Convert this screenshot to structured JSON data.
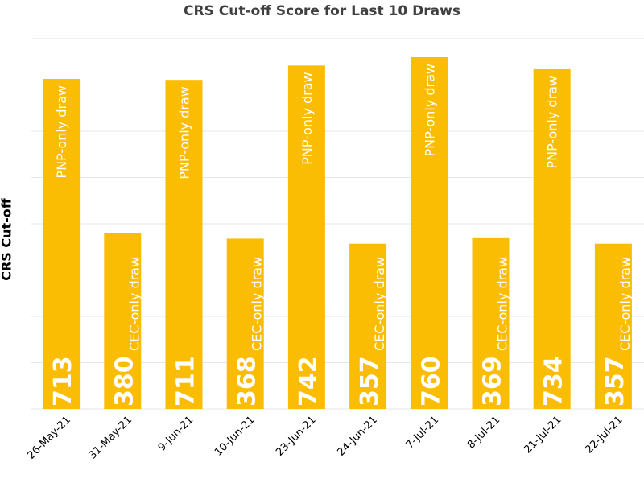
{
  "chart_data": {
    "type": "bar",
    "title": "CRS Cut-off Score for Last 10 Draws",
    "xlabel": "",
    "ylabel": "CRS Cut-off",
    "ylim": [
      0,
      800
    ],
    "grid": true,
    "legend": "none",
    "categories": [
      "26-May-21",
      "31-May-21",
      "9-Jun-21",
      "10-Jun-21",
      "23-Jun-21",
      "24-Jun-21",
      "7-Jul-21",
      "8-Jul-21",
      "21-Jul-21",
      "22-Jul-21"
    ],
    "values": [
      713,
      380,
      711,
      368,
      742,
      357,
      760,
      369,
      734,
      357
    ],
    "bar_labels": [
      "PNP-only draw",
      "CEC-only draw",
      "PNP-only draw",
      "CEC-only draw",
      "PNP-only draw",
      "CEC-only draw",
      "PNP-only draw",
      "CEC-only draw",
      "PNP-only draw",
      "CEC-only draw"
    ],
    "value_labels": [
      "713",
      "380",
      "711",
      "368",
      "742",
      "357",
      "760",
      "369",
      "734",
      "357"
    ],
    "bar_color": "#FBBC04",
    "label_color": "#FFFFFF",
    "grid_color": "#E6E6E6"
  }
}
